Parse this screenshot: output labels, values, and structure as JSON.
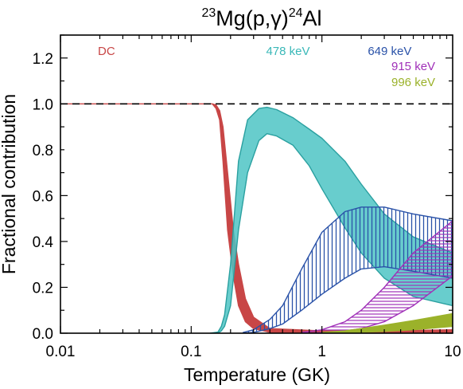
{
  "chart_data": {
    "type": "area",
    "title": {
      "pre_sup": "23",
      "main": "Mg(p,γ)",
      "post_sup": "24",
      "tail": "Al"
    },
    "xlabel": "Temperature (GK)",
    "ylabel": "Fractional contribution",
    "x_scale": "log",
    "xlim": [
      0.01,
      10
    ],
    "ylim": [
      0,
      1.3
    ],
    "x_ticks": [
      {
        "value": 0.01,
        "label": "0.01"
      },
      {
        "value": 0.1,
        "label": "0.1"
      },
      {
        "value": 1,
        "label": "1"
      },
      {
        "value": 10,
        "label": "10"
      }
    ],
    "y_ticks": [
      {
        "value": 0.0,
        "label": "0.0"
      },
      {
        "value": 0.2,
        "label": "0.2"
      },
      {
        "value": 0.4,
        "label": "0.4"
      },
      {
        "value": 0.6,
        "label": "0.6"
      },
      {
        "value": 0.8,
        "label": "0.8"
      },
      {
        "value": 1.0,
        "label": "1.0"
      },
      {
        "value": 1.2,
        "label": "1.2"
      }
    ],
    "reference_line": {
      "y": 1.0,
      "style": "dashed"
    },
    "grid": false,
    "series": [
      {
        "name": "DC",
        "color": "#c84646",
        "fill": "solid",
        "label_x": 0.0225,
        "label_y": 1.23,
        "x": [
          0.01,
          0.13,
          0.145,
          0.155,
          0.165,
          0.175,
          0.19,
          0.21,
          0.23,
          0.26,
          0.3,
          0.4,
          1,
          3,
          10
        ],
        "lower": [
          1.0,
          1.0,
          1.0,
          0.98,
          0.93,
          0.75,
          0.45,
          0.25,
          0.12,
          0.05,
          0.02,
          0.004,
          0,
          0,
          0
        ],
        "upper": [
          1.0,
          1.0,
          1.0,
          0.995,
          0.97,
          0.9,
          0.7,
          0.45,
          0.3,
          0.15,
          0.07,
          0.02,
          0.01,
          0.01,
          0.015
        ]
      },
      {
        "name": "478 keV",
        "color": "#4dc4c4",
        "edge_color": "#2aa0a0",
        "fill": "solid",
        "label_x": 0.55,
        "label_y": 1.23,
        "x": [
          0.14,
          0.16,
          0.17,
          0.18,
          0.2,
          0.23,
          0.27,
          0.33,
          0.38,
          0.45,
          0.6,
          0.8,
          1,
          1.5,
          2,
          3,
          5,
          10
        ],
        "lower": [
          0,
          0,
          0.01,
          0.03,
          0.12,
          0.45,
          0.7,
          0.84,
          0.87,
          0.86,
          0.82,
          0.73,
          0.63,
          0.46,
          0.35,
          0.24,
          0.16,
          0.12
        ],
        "upper": [
          0,
          0.005,
          0.03,
          0.08,
          0.3,
          0.75,
          0.93,
          0.98,
          0.985,
          0.975,
          0.94,
          0.89,
          0.85,
          0.75,
          0.65,
          0.52,
          0.42,
          0.35
        ]
      },
      {
        "name": "649 keV",
        "color": "#2a52a8",
        "fill": "vertical-hatch",
        "label_x": 3.3,
        "label_y": 1.23,
        "x": [
          0.25,
          0.3,
          0.4,
          0.5,
          0.7,
          1,
          1.5,
          2,
          3,
          5,
          10
        ],
        "lower": [
          0,
          0.003,
          0.02,
          0.04,
          0.1,
          0.17,
          0.24,
          0.28,
          0.29,
          0.27,
          0.24
        ],
        "upper": [
          0.003,
          0.015,
          0.06,
          0.12,
          0.28,
          0.44,
          0.53,
          0.55,
          0.55,
          0.52,
          0.49
        ]
      },
      {
        "name": "915 keV",
        "color": "#a030b8",
        "fill": "horizontal-hatch",
        "label_x": 5.0,
        "label_y": 1.165,
        "x": [
          0.7,
          1,
          1.5,
          2,
          3,
          5,
          10
        ],
        "lower": [
          0,
          0.003,
          0.01,
          0.02,
          0.05,
          0.12,
          0.25
        ],
        "upper": [
          0.003,
          0.015,
          0.05,
          0.1,
          0.2,
          0.35,
          0.49
        ]
      },
      {
        "name": "996 keV",
        "color": "#9bb22a",
        "fill": "solid",
        "label_x": 5.0,
        "label_y": 1.095,
        "x": [
          1,
          1.5,
          2,
          3,
          5,
          10
        ],
        "lower": [
          0,
          0.002,
          0.004,
          0.008,
          0.015,
          0.03
        ],
        "upper": [
          0.003,
          0.01,
          0.02,
          0.035,
          0.055,
          0.085
        ]
      }
    ]
  }
}
